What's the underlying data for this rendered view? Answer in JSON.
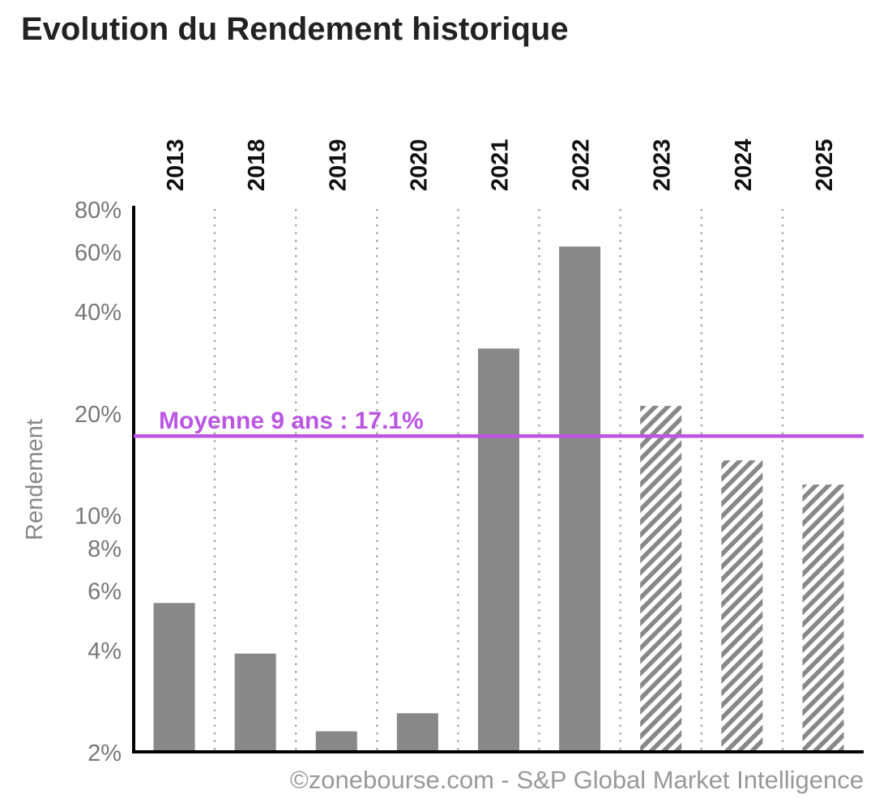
{
  "chart_data": {
    "type": "bar",
    "title": "Evolution du Rendement historique",
    "ylabel": "Rendement",
    "yscale": "log",
    "ylim": [
      2,
      80
    ],
    "yticks": [
      2,
      4,
      6,
      8,
      10,
      20,
      40,
      60,
      80
    ],
    "ytick_labels": [
      "2%",
      "4%",
      "6%",
      "8%",
      "10%",
      "20%",
      "40%",
      "60%",
      "80%"
    ],
    "categories": [
      "2013",
      "2018",
      "2019",
      "2020",
      "2021",
      "2022",
      "2023",
      "2024",
      "2025"
    ],
    "values": [
      5.5,
      3.9,
      2.3,
      2.6,
      31,
      62,
      21,
      14.5,
      12.3
    ],
    "estimated": [
      false,
      false,
      false,
      false,
      false,
      false,
      true,
      true,
      true
    ],
    "average": {
      "value": 17.1,
      "label": "Moyenne 9 ans : 17.1%"
    },
    "grid": "vertical-dotted",
    "colors": {
      "bar": "#888888",
      "average": "#bb55e3",
      "axis": "#000000"
    },
    "credit": "©zonebourse.com - S&P Global Market Intelligence"
  }
}
